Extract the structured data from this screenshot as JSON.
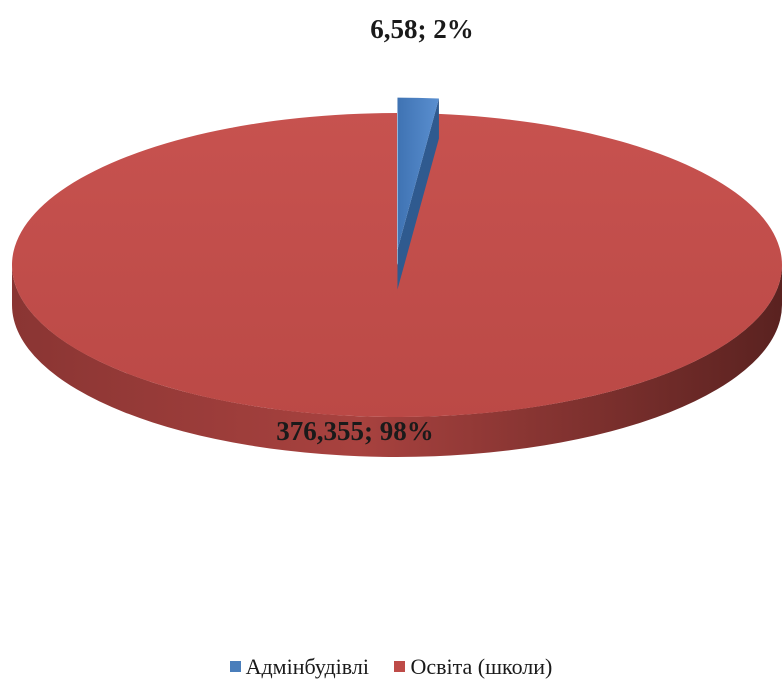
{
  "chart_data": {
    "type": "pie",
    "categories": [
      "Адмінбудівлі",
      "Освіта (школи)"
    ],
    "values": [
      6.58,
      376.355
    ],
    "percent": [
      2,
      98
    ],
    "labels": [
      "6,58; 2%",
      "376,355; 98%"
    ],
    "colors": [
      "#4a7ebb",
      "#be4b48"
    ],
    "legend_position": "bottom",
    "three_d": true,
    "exploded_slice": "Адмінбудівлі"
  }
}
